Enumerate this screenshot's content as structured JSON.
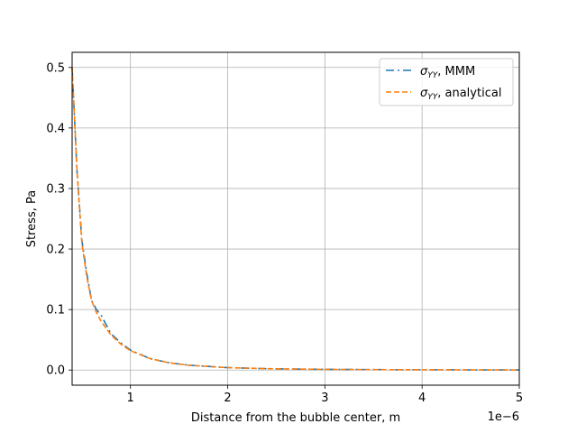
{
  "chart_data": {
    "type": "line",
    "title": "",
    "xlabel": "Distance from the bubble center, m",
    "ylabel": "Stress, Pa",
    "x_offset_text": "1e−6",
    "xlim": [
      0.4,
      5.0
    ],
    "ylim": [
      -0.025,
      0.525
    ],
    "xticks": [
      1,
      2,
      3,
      4,
      5
    ],
    "yticks": [
      0.0,
      0.1,
      0.2,
      0.3,
      0.4,
      0.5
    ],
    "xtick_labels": [
      "1",
      "2",
      "3",
      "4",
      "5"
    ],
    "ytick_labels": [
      "0.0",
      "0.1",
      "0.2",
      "0.3",
      "0.4",
      "0.5"
    ],
    "grid": true,
    "legend_position": "top-right",
    "series": [
      {
        "name": "MMM",
        "legend_symbol": "σ",
        "legend_subscript": "YY",
        "legend_suffix": ", MMM",
        "color": "#1f77b4",
        "linestyle": "dashdot",
        "x": [
          0.4,
          0.45,
          0.5,
          0.55,
          0.6,
          0.65,
          0.7,
          0.8,
          0.9,
          1.0,
          1.2,
          1.4,
          1.6,
          2.0,
          2.5,
          3.0,
          3.5,
          4.0,
          4.5,
          5.0
        ],
        "y": [
          0.5,
          0.33,
          0.215,
          0.16,
          0.115,
          0.1,
          0.09,
          0.06,
          0.045,
          0.033,
          0.019,
          0.012,
          0.008,
          0.004,
          0.002,
          0.0012,
          0.0008,
          0.0005,
          0.0003,
          0.0002
        ]
      },
      {
        "name": "analytical",
        "legend_symbol": "σ",
        "legend_subscript": "YY",
        "legend_suffix": ", analytical",
        "color": "#ff7f0e",
        "linestyle": "dashed",
        "x": [
          0.4,
          0.45,
          0.5,
          0.55,
          0.6,
          0.65,
          0.7,
          0.8,
          0.9,
          1.0,
          1.2,
          1.4,
          1.6,
          2.0,
          2.5,
          3.0,
          3.5,
          4.0,
          4.5,
          5.0
        ],
        "y": [
          0.5,
          0.33,
          0.21,
          0.155,
          0.115,
          0.095,
          0.08,
          0.058,
          0.043,
          0.032,
          0.019,
          0.012,
          0.008,
          0.004,
          0.002,
          0.0012,
          0.0008,
          0.0005,
          0.0003,
          0.0002
        ]
      }
    ]
  }
}
